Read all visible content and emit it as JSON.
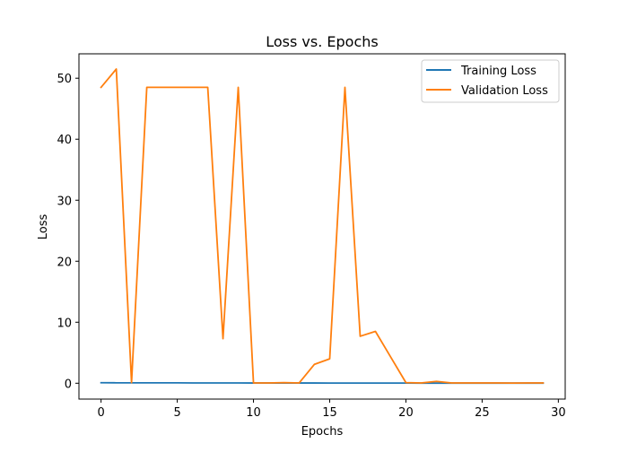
{
  "chart_data": {
    "type": "line",
    "title": "Loss vs. Epochs",
    "xlabel": "Epochs",
    "ylabel": "Loss",
    "xlim": [
      -1.45,
      30.45
    ],
    "ylim": [
      -2.6,
      54.0
    ],
    "xticks": [
      0,
      5,
      10,
      15,
      20,
      25,
      30
    ],
    "yticks": [
      0,
      10,
      20,
      30,
      40,
      50
    ],
    "grid": false,
    "legend_position": "top-right",
    "x": [
      0,
      1,
      2,
      3,
      4,
      5,
      6,
      7,
      8,
      9,
      10,
      11,
      12,
      13,
      14,
      15,
      16,
      17,
      18,
      19,
      20,
      21,
      22,
      23,
      24,
      25,
      26,
      27,
      28,
      29
    ],
    "series": [
      {
        "name": "Training Loss",
        "color": "#1f77b4",
        "values": [
          0.08,
          0.07,
          0.07,
          0.06,
          0.06,
          0.06,
          0.05,
          0.05,
          0.05,
          0.05,
          0.04,
          0.04,
          0.04,
          0.04,
          0.04,
          0.03,
          0.03,
          0.03,
          0.03,
          0.03,
          0.03,
          0.02,
          0.02,
          0.02,
          0.02,
          0.02,
          0.02,
          0.02,
          0.02,
          0.02
        ]
      },
      {
        "name": "Validation Loss",
        "color": "#ff7f0e",
        "values": [
          48.5,
          51.5,
          0.1,
          48.5,
          48.5,
          48.5,
          48.5,
          48.5,
          7.3,
          48.5,
          0.05,
          0.05,
          0.1,
          0.05,
          3.1,
          4.0,
          48.5,
          7.7,
          8.5,
          4.3,
          0.1,
          0.05,
          0.3,
          0.05,
          0.05,
          0.05,
          0.05,
          0.03,
          0.05,
          0.05
        ]
      }
    ]
  }
}
